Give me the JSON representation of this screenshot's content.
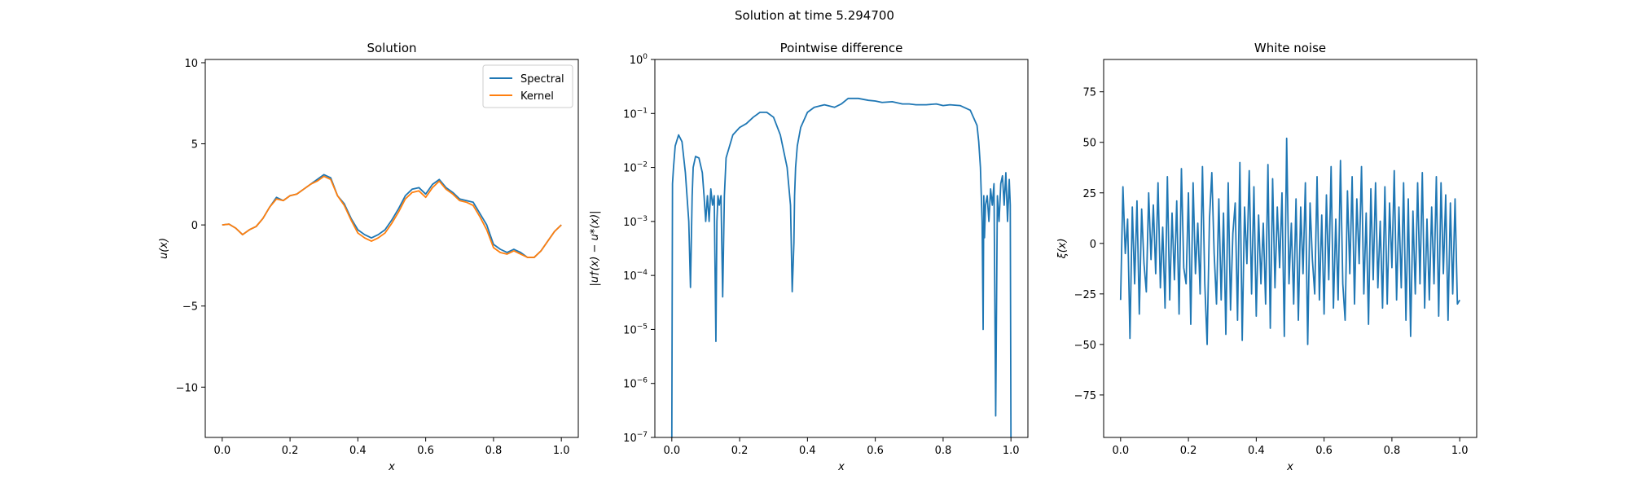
{
  "suptitle": "Solution at time 5.294700",
  "colors": {
    "spectral": "#1f77b4",
    "kernel": "#ff7f0e",
    "axis": "#000000"
  },
  "chart_data": [
    {
      "type": "line",
      "title": "Solution",
      "xlabel": "x",
      "ylabel": "u(x)",
      "xlim": [
        -0.05,
        1.05
      ],
      "ylim": [
        -13.1,
        10.2
      ],
      "xticks": [
        0.0,
        0.2,
        0.4,
        0.6,
        0.8,
        1.0
      ],
      "xtick_labels": [
        "0.0",
        "0.2",
        "0.4",
        "0.6",
        "0.8",
        "1.0"
      ],
      "yticks": [
        10,
        5,
        0,
        -5,
        -10
      ],
      "ytick_labels": [
        "10",
        "5",
        "0",
        "−5",
        "−10"
      ],
      "legend": "upper-right",
      "series": [
        {
          "name": "Spectral",
          "color": "#1f77b4",
          "x": [
            0.0,
            0.02,
            0.04,
            0.06,
            0.08,
            0.1,
            0.12,
            0.14,
            0.16,
            0.18,
            0.2,
            0.22,
            0.24,
            0.26,
            0.28,
            0.3,
            0.32,
            0.34,
            0.36,
            0.38,
            0.4,
            0.42,
            0.44,
            0.46,
            0.48,
            0.5,
            0.52,
            0.54,
            0.56,
            0.58,
            0.6,
            0.62,
            0.64,
            0.66,
            0.68,
            0.7,
            0.72,
            0.74,
            0.76,
            0.78,
            0.8,
            0.82,
            0.84,
            0.86,
            0.88,
            0.9,
            0.92,
            0.94,
            0.96,
            0.98,
            1.0
          ],
          "y": [
            0.0,
            0.05,
            -0.2,
            -0.6,
            -0.3,
            -0.1,
            0.4,
            1.1,
            1.7,
            1.5,
            1.8,
            1.9,
            2.2,
            2.5,
            2.8,
            3.1,
            2.9,
            1.8,
            1.3,
            0.4,
            -0.3,
            -0.6,
            -0.8,
            -0.6,
            -0.3,
            0.3,
            1.0,
            1.8,
            2.2,
            2.3,
            1.9,
            2.5,
            2.8,
            2.3,
            2.0,
            1.6,
            1.5,
            1.4,
            0.7,
            0.0,
            -1.2,
            -1.5,
            -1.7,
            -1.5,
            -1.7,
            -2.0,
            -2.0,
            -1.6,
            -1.0,
            -0.4,
            0.0
          ]
        },
        {
          "name": "Kernel",
          "color": "#ff7f0e",
          "x": [
            0.0,
            0.02,
            0.04,
            0.06,
            0.08,
            0.1,
            0.12,
            0.14,
            0.16,
            0.18,
            0.2,
            0.22,
            0.24,
            0.26,
            0.28,
            0.3,
            0.32,
            0.34,
            0.36,
            0.38,
            0.4,
            0.42,
            0.44,
            0.46,
            0.48,
            0.5,
            0.52,
            0.54,
            0.56,
            0.58,
            0.6,
            0.62,
            0.64,
            0.66,
            0.68,
            0.7,
            0.72,
            0.74,
            0.76,
            0.78,
            0.8,
            0.82,
            0.84,
            0.86,
            0.88,
            0.9,
            0.92,
            0.94,
            0.96,
            0.98,
            1.0
          ],
          "y": [
            0.0,
            0.05,
            -0.2,
            -0.6,
            -0.3,
            -0.1,
            0.4,
            1.1,
            1.6,
            1.5,
            1.8,
            1.9,
            2.2,
            2.5,
            2.7,
            3.0,
            2.8,
            1.8,
            1.2,
            0.3,
            -0.5,
            -0.8,
            -1.0,
            -0.8,
            -0.5,
            0.1,
            0.8,
            1.6,
            2.0,
            2.1,
            1.7,
            2.3,
            2.7,
            2.2,
            1.9,
            1.5,
            1.4,
            1.2,
            0.5,
            -0.3,
            -1.4,
            -1.7,
            -1.8,
            -1.6,
            -1.8,
            -2.0,
            -2.0,
            -1.6,
            -1.0,
            -0.4,
            0.0
          ]
        }
      ]
    },
    {
      "type": "line",
      "title": "Pointwise difference",
      "xlabel": "x",
      "ylabel": "|u†(x) − u*(x)|",
      "yscale": "log",
      "xlim": [
        -0.05,
        1.05
      ],
      "ylim": [
        1e-07,
        1
      ],
      "xticks": [
        0.0,
        0.2,
        0.4,
        0.6,
        0.8,
        1.0
      ],
      "xtick_labels": [
        "0.0",
        "0.2",
        "0.4",
        "0.6",
        "0.8",
        "1.0"
      ],
      "yticks": [
        1,
        0.1,
        0.01,
        0.001,
        0.0001,
        1e-05,
        1e-06,
        1e-07
      ],
      "ytick_base": [
        "10",
        "10",
        "10",
        "10",
        "10",
        "10",
        "10",
        "10"
      ],
      "ytick_exp": [
        "0",
        "−1",
        "−2",
        "−3",
        "−4",
        "−5",
        "−6",
        "−7"
      ],
      "series": [
        {
          "color": "#1f77b4",
          "x": [
            0.0,
            0.002,
            0.005,
            0.01,
            0.02,
            0.03,
            0.04,
            0.05,
            0.055,
            0.06,
            0.063,
            0.07,
            0.08,
            0.09,
            0.095,
            0.1,
            0.105,
            0.11,
            0.115,
            0.12,
            0.125,
            0.13,
            0.133,
            0.136,
            0.14,
            0.145,
            0.15,
            0.155,
            0.16,
            0.18,
            0.2,
            0.22,
            0.24,
            0.26,
            0.28,
            0.3,
            0.32,
            0.34,
            0.35,
            0.355,
            0.36,
            0.362,
            0.365,
            0.37,
            0.38,
            0.4,
            0.42,
            0.45,
            0.48,
            0.5,
            0.52,
            0.55,
            0.58,
            0.6,
            0.62,
            0.65,
            0.68,
            0.7,
            0.72,
            0.75,
            0.78,
            0.8,
            0.82,
            0.85,
            0.88,
            0.9,
            0.905,
            0.91,
            0.915,
            0.918,
            0.92,
            0.922,
            0.925,
            0.93,
            0.935,
            0.94,
            0.945,
            0.95,
            0.955,
            0.96,
            0.965,
            0.97,
            0.975,
            0.98,
            0.985,
            0.99,
            0.995,
            0.998,
            1.0
          ],
          "y": [
            1e-07,
            0.005,
            0.01,
            0.025,
            0.04,
            0.03,
            0.008,
            0.001,
            6e-05,
            0.003,
            0.01,
            0.016,
            0.015,
            0.008,
            0.003,
            0.001,
            0.003,
            0.001,
            0.004,
            0.002,
            0.003,
            6e-06,
            0.001,
            0.003,
            0.002,
            0.003,
            4e-05,
            0.003,
            0.015,
            0.04,
            0.055,
            0.065,
            0.085,
            0.105,
            0.105,
            0.085,
            0.04,
            0.01,
            0.002,
            5e-05,
            0.0004,
            0.003,
            0.01,
            0.025,
            0.055,
            0.105,
            0.13,
            0.145,
            0.13,
            0.15,
            0.19,
            0.19,
            0.175,
            0.17,
            0.16,
            0.165,
            0.15,
            0.15,
            0.145,
            0.145,
            0.15,
            0.14,
            0.145,
            0.14,
            0.115,
            0.06,
            0.03,
            0.01,
            0.001,
            1e-05,
            0.003,
            0.0005,
            0.002,
            0.003,
            0.001,
            0.004,
            0.002,
            0.005,
            2.5e-07,
            0.003,
            0.001,
            0.005,
            0.007,
            0.002,
            0.008,
            0.001,
            0.006,
            0.002,
            1e-07
          ]
        }
      ]
    },
    {
      "type": "line",
      "title": "White noise",
      "xlabel": "x",
      "ylabel": "ξ(x)",
      "xlim": [
        -0.05,
        1.05
      ],
      "ylim": [
        -96,
        91
      ],
      "xticks": [
        0.0,
        0.2,
        0.4,
        0.6,
        0.8,
        1.0
      ],
      "xtick_labels": [
        "0.0",
        "0.2",
        "0.4",
        "0.6",
        "0.8",
        "1.0"
      ],
      "yticks": [
        75,
        50,
        25,
        0,
        -25,
        -50,
        -75
      ],
      "ytick_labels": [
        "75",
        "50",
        "25",
        "0",
        "−25",
        "−50",
        "−75"
      ],
      "series": [
        {
          "color": "#1f77b4",
          "x_start": 0.0,
          "x_end": 1.0,
          "y": [
            -28,
            28,
            -5,
            12,
            -47,
            18,
            -20,
            21,
            -35,
            17,
            -10,
            -24,
            25,
            -8,
            19,
            -15,
            30,
            -22,
            8,
            -32,
            33,
            -28,
            15,
            -18,
            21,
            -35,
            37,
            -12,
            -20,
            25,
            -40,
            30,
            -15,
            10,
            -25,
            38,
            -20,
            -50,
            12,
            35,
            -5,
            -30,
            22,
            -28,
            15,
            -45,
            30,
            -33,
            5,
            20,
            -38,
            40,
            -48,
            18,
            -10,
            36,
            -25,
            28,
            -36,
            14,
            -20,
            10,
            -30,
            39,
            -42,
            32,
            -22,
            18,
            -12,
            25,
            -46,
            52,
            -20,
            10,
            -30,
            22,
            -38,
            18,
            -15,
            30,
            -50,
            20,
            -8,
            -25,
            33,
            -28,
            14,
            -35,
            24,
            -18,
            38,
            -32,
            12,
            -28,
            41,
            -20,
            -38,
            26,
            -15,
            33,
            -30,
            22,
            -10,
            38,
            -25,
            15,
            -40,
            27,
            -18,
            30,
            -22,
            11,
            -32,
            28,
            -30,
            20,
            -12,
            36,
            -28,
            18,
            -22,
            30,
            -38,
            22,
            -46,
            16,
            -25,
            30,
            -20,
            35,
            -32,
            12,
            -28,
            18,
            -20,
            33,
            -36,
            30,
            -15,
            24,
            -38,
            20,
            -25,
            22,
            -30,
            -28
          ]
        }
      ]
    }
  ]
}
